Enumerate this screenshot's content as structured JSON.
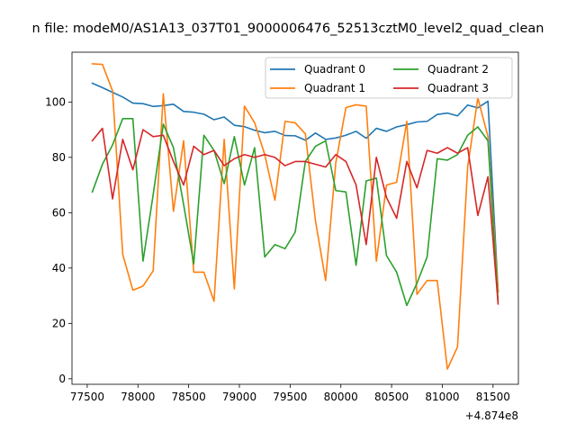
{
  "chart_data": {
    "type": "line",
    "title": "n file: modeM0/AS1A13_037T01_9000006476_52513cztM0_level2_quad_clean",
    "xlabel": "",
    "ylabel": "",
    "x_offset_label": "+4.874e8",
    "xlim": [
      77350,
      81750
    ],
    "ylim": [
      -2,
      118
    ],
    "x_ticks": [
      77500,
      78000,
      78500,
      79000,
      79500,
      80000,
      80500,
      81000,
      81500
    ],
    "y_ticks": [
      0,
      20,
      40,
      60,
      80,
      100
    ],
    "legend_position": "top-right",
    "x": [
      77550,
      77650,
      77750,
      77850,
      77950,
      78050,
      78150,
      78250,
      78350,
      78450,
      78550,
      78650,
      78750,
      78850,
      78950,
      79050,
      79150,
      79250,
      79350,
      79450,
      79550,
      79650,
      79750,
      79850,
      79950,
      80050,
      80150,
      80250,
      80350,
      80450,
      80550,
      80650,
      80750,
      80850,
      80950,
      81050,
      81150,
      81250,
      81350,
      81450,
      81550
    ],
    "series": [
      {
        "name": "Quadrant 0",
        "color": "#1f77b4",
        "values": [
          106.8,
          105.2,
          103.5,
          101.8,
          99.6,
          99.4,
          98.4,
          98.7,
          99.2,
          96.6,
          96.3,
          95.6,
          93.6,
          94.6,
          91.6,
          91.1,
          89.8,
          88.9,
          89.4,
          87.9,
          87.8,
          86.2,
          88.8,
          86.5,
          87.0,
          88.0,
          89.4,
          86.9,
          90.5,
          89.4,
          91.0,
          91.8,
          92.8,
          93.0,
          95.5,
          96.0,
          95.0,
          98.9,
          97.9,
          100.3,
          31.5
        ]
      },
      {
        "name": "Quadrant 1",
        "color": "#ff7f0e",
        "values": [
          113.8,
          113.6,
          104.0,
          45.0,
          32.0,
          33.5,
          39.0,
          103.0,
          60.5,
          86.0,
          38.5,
          38.5,
          28.0,
          86.5,
          32.5,
          98.5,
          92.5,
          81.0,
          64.5,
          93.0,
          92.5,
          88.5,
          57.0,
          35.5,
          78.0,
          98.0,
          99.0,
          98.5,
          42.5,
          70.0,
          71.0,
          93.0,
          30.5,
          35.5,
          35.5,
          3.5,
          11.5,
          76.5,
          101.5,
          87.5,
          31.5
        ]
      },
      {
        "name": "Quadrant 2",
        "color": "#2ca02c",
        "values": [
          67.5,
          77.5,
          84.5,
          94.0,
          94.0,
          42.5,
          66.5,
          92.0,
          83.5,
          63.0,
          41.5,
          88.0,
          82.5,
          70.5,
          87.5,
          70.0,
          83.5,
          44.0,
          48.5,
          47.0,
          53.0,
          78.5,
          84.0,
          86.0,
          68.0,
          67.5,
          41.0,
          71.5,
          72.5,
          44.5,
          38.5,
          26.5,
          34.5,
          44.0,
          79.5,
          79.0,
          81.0,
          88.0,
          91.0,
          86.0,
          28.0
        ]
      },
      {
        "name": "Quadrant 3",
        "color": "#d62728",
        "values": [
          86.0,
          90.5,
          65.0,
          86.5,
          75.5,
          90.0,
          87.5,
          88.0,
          78.5,
          70.0,
          84.0,
          81.0,
          82.5,
          77.0,
          79.5,
          81.0,
          80.0,
          81.0,
          80.0,
          77.0,
          78.5,
          78.5,
          77.5,
          76.5,
          81.0,
          78.5,
          70.0,
          48.5,
          80.0,
          65.5,
          58.0,
          78.5,
          69.0,
          82.5,
          81.5,
          83.5,
          81.5,
          83.5,
          59.0,
          73.0,
          27.0
        ]
      }
    ]
  }
}
